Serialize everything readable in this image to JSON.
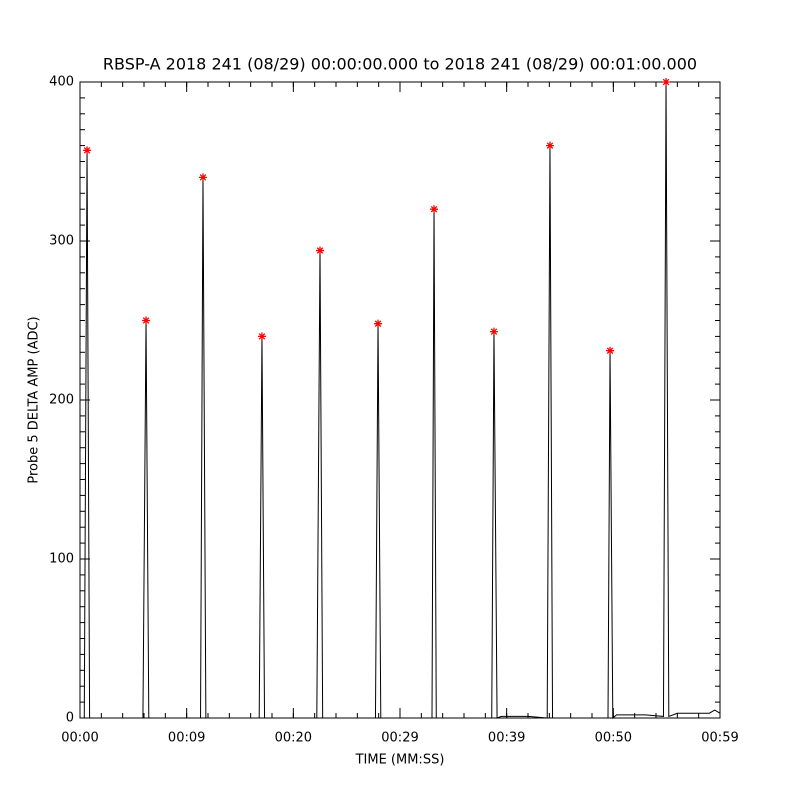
{
  "chart_data": {
    "type": "line",
    "title": "RBSP-A 2018 241 (08/29) 00:00:00.000 to 2018 241 (08/29) 00:01:00.000",
    "xlabel": "TIME (MM:SS)",
    "ylabel": "Probe 5 DELTA AMP (ADC)",
    "xlim": [
      0,
      60
    ],
    "ylim": [
      0,
      400
    ],
    "xticks": [
      {
        "value": 0,
        "label": "00:00"
      },
      {
        "value": 10,
        "label": "00:09"
      },
      {
        "value": 20,
        "label": "00:20"
      },
      {
        "value": 30,
        "label": "00:29"
      },
      {
        "value": 40,
        "label": "00:39"
      },
      {
        "value": 50,
        "label": "00:50"
      },
      {
        "value": 60,
        "label": "00:59"
      }
    ],
    "yticks": [
      0,
      100,
      200,
      300,
      400
    ],
    "xminor_step": 2,
    "yminor_step": 10,
    "series": [
      {
        "color": "#000000",
        "marker": "none",
        "x": [
          0.4,
          0.66,
          0.9,
          5.9,
          6.19,
          6.45,
          11.3,
          11.53,
          11.8,
          16.8,
          17.06,
          17.3,
          22.2,
          22.5,
          22.75,
          27.7,
          27.94,
          28.2,
          33.0,
          33.19,
          33.4,
          38.6,
          38.81,
          39.1,
          39.5,
          42,
          43.8,
          44.06,
          44.3,
          49.5,
          49.69,
          49.95,
          50.3,
          53,
          54.7,
          54.94,
          55.2,
          56,
          59,
          59.5,
          60
        ],
        "values": [
          0,
          357,
          0,
          0,
          250,
          0,
          0,
          340,
          0,
          0,
          240,
          0,
          0,
          294,
          0,
          0,
          248,
          0,
          0,
          320,
          0,
          0,
          243,
          0,
          1,
          1,
          0,
          360,
          0,
          0,
          231,
          0,
          2,
          2,
          1,
          400,
          1,
          3,
          3,
          5,
          3
        ]
      },
      {
        "color": "#ff0000",
        "marker": "asterisk",
        "x": [
          0.66,
          6.19,
          11.53,
          17.06,
          22.5,
          27.94,
          33.19,
          38.81,
          44.06,
          49.69,
          54.94
        ],
        "values": [
          357,
          250,
          340,
          240,
          294,
          248,
          320,
          243,
          360,
          231,
          400
        ]
      }
    ]
  }
}
